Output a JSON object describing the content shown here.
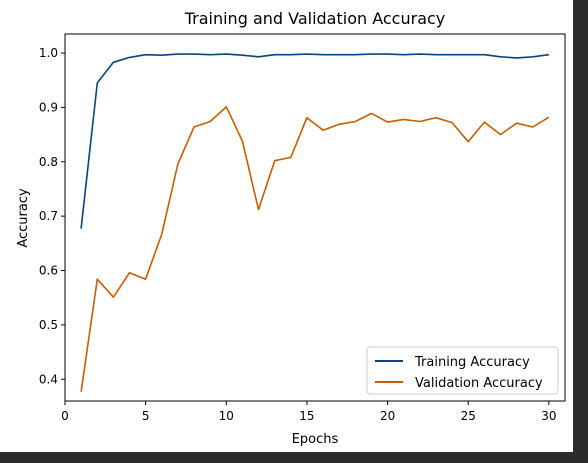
{
  "chart_data": {
    "type": "line",
    "title": "Training and Validation Accuracy",
    "xlabel": "Epochs",
    "ylabel": "Accuracy",
    "xlim": [
      0,
      31
    ],
    "ylim": [
      0.36,
      1.035
    ],
    "xticks": [
      0,
      5,
      10,
      15,
      20,
      25,
      30
    ],
    "yticks": [
      0.4,
      0.5,
      0.6,
      0.7,
      0.8,
      0.9,
      1.0
    ],
    "grid": false,
    "legend_position": "bottom-right",
    "x": [
      1,
      2,
      3,
      4,
      5,
      6,
      7,
      8,
      9,
      10,
      11,
      12,
      13,
      14,
      15,
      16,
      17,
      18,
      19,
      20,
      21,
      22,
      23,
      24,
      25,
      26,
      27,
      28,
      29,
      30
    ],
    "series": [
      {
        "name": "Training Accuracy",
        "color": "#08457e",
        "values": [
          0.677,
          0.945,
          0.983,
          0.992,
          0.997,
          0.996,
          0.998,
          0.998,
          0.997,
          0.998,
          0.996,
          0.993,
          0.997,
          0.997,
          0.998,
          0.997,
          0.997,
          0.997,
          0.998,
          0.998,
          0.997,
          0.998,
          0.997,
          0.997,
          0.997,
          0.997,
          0.993,
          0.991,
          0.993,
          0.997
        ]
      },
      {
        "name": "Validation Accuracy",
        "color": "#cc5c00",
        "values": [
          0.377,
          0.584,
          0.551,
          0.596,
          0.584,
          0.667,
          0.796,
          0.864,
          0.874,
          0.901,
          0.838,
          0.712,
          0.802,
          0.808,
          0.881,
          0.858,
          0.869,
          0.874,
          0.889,
          0.873,
          0.878,
          0.874,
          0.881,
          0.872,
          0.837,
          0.873,
          0.85,
          0.871,
          0.864,
          0.882
        ]
      }
    ]
  }
}
